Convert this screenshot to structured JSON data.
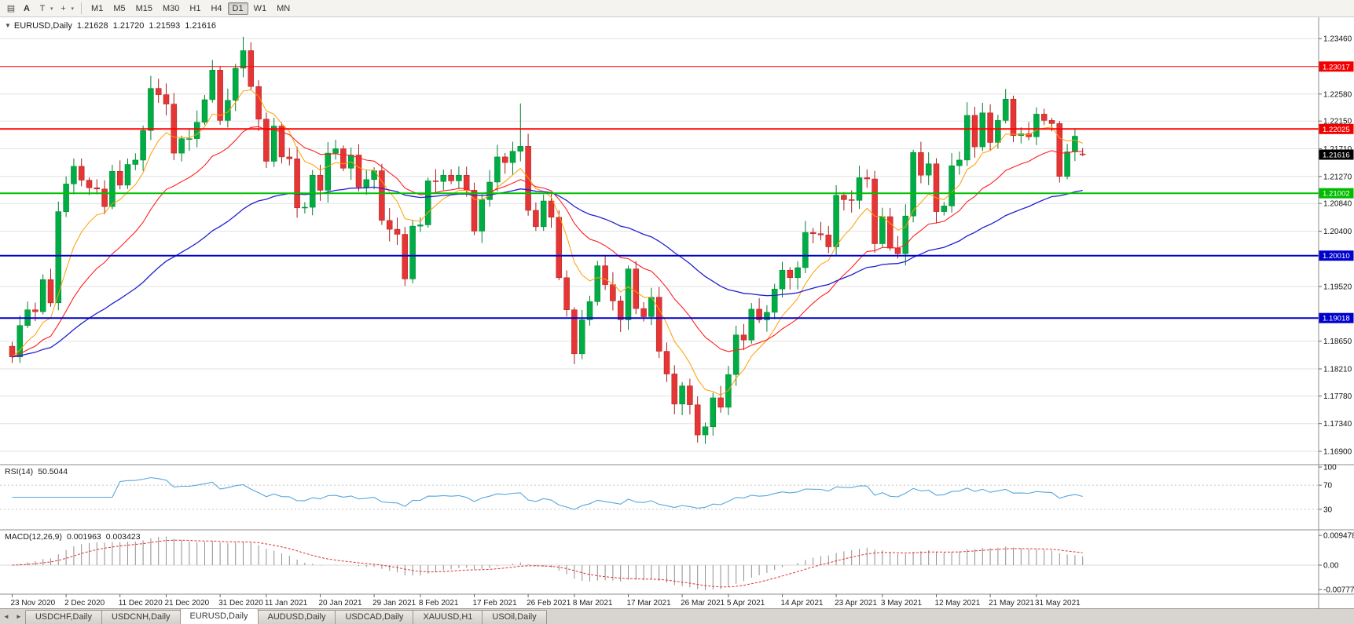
{
  "toolbar": {
    "caret": "▾",
    "icons": [
      {
        "name": "chart-list-icon",
        "glyph": "▤"
      },
      {
        "name": "text-label-icon",
        "glyph": "A"
      },
      {
        "name": "text-tool-icon",
        "glyph": "T"
      },
      {
        "name": "crosshair-cursor-icon",
        "glyph": "+"
      }
    ],
    "timeframes": [
      {
        "label": "M1",
        "active": false
      },
      {
        "label": "M5",
        "active": false
      },
      {
        "label": "M15",
        "active": false
      },
      {
        "label": "M30",
        "active": false
      },
      {
        "label": "H1",
        "active": false
      },
      {
        "label": "H4",
        "active": false
      },
      {
        "label": "D1",
        "active": true
      },
      {
        "label": "W1",
        "active": false
      },
      {
        "label": "MN",
        "active": false
      }
    ]
  },
  "colors": {
    "bull": "#00ad45",
    "bull_edge": "#00802f",
    "bear": "#e53535",
    "bear_edge": "#a81d1d",
    "ma_fast": "#ff9e00",
    "ma_mid": "#ff1f1f",
    "ma_slow": "#1f1fd0",
    "rsi_line": "#57a7dd",
    "macd_hist": "#909090",
    "macd_signal": "#e03030",
    "grid": "#e2e2e2",
    "panel_border": "#8c8c8c",
    "axis_text": "#111111"
  },
  "chart_data": {
    "type": "candlestick",
    "symbol": "EURUSD",
    "timeframe": "Daily",
    "title": {
      "arrow": "▼",
      "symbol": "EURUSD,Daily",
      "o": "1.21628",
      "h": "1.21720",
      "l": "1.21593",
      "c": "1.21616"
    },
    "price_range": {
      "top": 1.238,
      "bottom": 1.1675
    },
    "first_open": 1.1857,
    "closes": [
      1.184,
      1.189,
      1.1915,
      1.1912,
      1.1963,
      1.1926,
      1.2071,
      1.2115,
      1.2143,
      1.2121,
      1.2109,
      1.2107,
      1.2079,
      1.2135,
      1.2113,
      1.2146,
      1.2153,
      1.22,
      1.2267,
      1.2257,
      1.2242,
      1.2164,
      1.2187,
      1.2187,
      1.2213,
      1.2249,
      1.2296,
      1.2216,
      1.2248,
      1.2299,
      1.2327,
      1.227,
      1.2218,
      1.2151,
      1.2207,
      1.2158,
      1.2155,
      1.2077,
      1.2078,
      1.2129,
      1.2105,
      1.2164,
      1.2171,
      1.214,
      1.2161,
      1.211,
      1.2122,
      1.2136,
      1.2057,
      1.2043,
      1.2035,
      1.1964,
      1.2048,
      1.205,
      1.212,
      1.2119,
      1.2129,
      1.212,
      1.2129,
      1.2105,
      1.204,
      1.209,
      1.2118,
      1.2158,
      1.2149,
      1.2167,
      1.2175,
      1.2073,
      1.2047,
      1.2088,
      1.2062,
      1.1966,
      1.1915,
      1.1845,
      1.1899,
      1.1928,
      1.1985,
      1.1955,
      1.1929,
      1.1899,
      1.198,
      1.1917,
      1.1904,
      1.1935,
      1.1849,
      1.1813,
      1.1765,
      1.1794,
      1.1764,
      1.1716,
      1.1729,
      1.1775,
      1.176,
      1.1812,
      1.1875,
      1.1867,
      1.1916,
      1.1899,
      1.1911,
      1.1948,
      1.1978,
      1.1966,
      1.1982,
      1.2038,
      1.2036,
      1.2034,
      1.2015,
      1.2097,
      1.209,
      1.2089,
      1.2125,
      1.2123,
      1.202,
      1.2063,
      1.2013,
      1.2004,
      1.2064,
      1.2165,
      1.2129,
      1.2147,
      1.2071,
      1.208,
      1.2144,
      1.2153,
      1.2224,
      1.2174,
      1.2228,
      1.2181,
      1.2216,
      1.225,
      1.2192,
      1.2195,
      1.219,
      1.2226,
      1.2216,
      1.2211,
      1.2127,
      1.2166,
      1.2191,
      1.21616
    ],
    "overrides": {
      "30": {
        "h": 1.2349
      },
      "51": {
        "l": 1.1953
      },
      "66": {
        "h": 1.2243
      },
      "89": {
        "l": 1.1704
      },
      "124": {
        "h": 1.2245
      },
      "129": {
        "h": 1.2266
      },
      "139": {
        "o": 1.21628,
        "h": 1.2172,
        "l": 1.21593,
        "c": 1.21616
      }
    },
    "ma_periods": [
      8,
      20,
      50
    ],
    "hlines": [
      {
        "v": 1.23017,
        "color": "#ff0000",
        "w": 1
      },
      {
        "v": 1.22025,
        "color": "#ff0000",
        "w": 2
      },
      {
        "v": 1.21002,
        "color": "#00c000",
        "w": 2
      },
      {
        "v": 1.2001,
        "color": "#0000c8",
        "w": 2
      },
      {
        "v": 1.19018,
        "color": "#0000c8",
        "w": 2
      }
    ],
    "price_ticks": [
      {
        "t": "1.23460",
        "v": 1.2346
      },
      {
        "t": "1.22580",
        "v": 1.2258
      },
      {
        "t": "1.22150",
        "v": 1.2215
      },
      {
        "t": "1.21710",
        "v": 1.2171
      },
      {
        "t": "1.21270",
        "v": 1.2127
      },
      {
        "t": "1.20840",
        "v": 1.2084
      },
      {
        "t": "1.20400",
        "v": 1.204
      },
      {
        "t": "1.19520",
        "v": 1.1952
      },
      {
        "t": "1.18650",
        "v": 1.1865
      },
      {
        "t": "1.18210",
        "v": 1.1821
      },
      {
        "t": "1.17780",
        "v": 1.1778
      },
      {
        "t": "1.17340",
        "v": 1.1734
      },
      {
        "t": "1.16900",
        "v": 1.169
      }
    ],
    "line_labels": [
      {
        "t": "1.23017",
        "v": 1.23017,
        "color": "#f20000"
      },
      {
        "t": "1.22025",
        "v": 1.22025,
        "color": "#f20000"
      },
      {
        "t": "1.21002",
        "v": 1.21002,
        "color": "#00bb00"
      },
      {
        "t": "1.20010",
        "v": 1.2001,
        "color": "#0000cc"
      },
      {
        "t": "1.19018",
        "v": 1.19018,
        "color": "#0000cc"
      }
    ],
    "current_price": {
      "t": "1.21616",
      "v": 1.21616
    },
    "rsi": {
      "label": "RSI(14)",
      "value": "50.5044",
      "period": 14,
      "levels": [
        70,
        30
      ],
      "axis": [
        "100",
        "70",
        "30"
      ]
    },
    "macd": {
      "label": "MACD(12,26,9)",
      "values": [
        "0.001963",
        "0.003423"
      ],
      "params": [
        12,
        26,
        9
      ],
      "axis": [
        {
          "t": "0.009478",
          "v": 0.009478
        },
        {
          "t": "0.00",
          "v": 0
        },
        {
          "t": "-0.00777",
          "v": -0.00777
        }
      ]
    },
    "x_labels": [
      [
        "23 Nov 2020",
        0
      ],
      [
        "2 Dec 2020",
        7
      ],
      [
        "11 Dec 2020",
        14
      ],
      [
        "21 Dec 2020",
        20
      ],
      [
        "31 Dec 2020",
        27
      ],
      [
        "11 Jan 2021",
        33
      ],
      [
        "20 Jan 2021",
        40
      ],
      [
        "29 Jan 2021",
        47
      ],
      [
        "8 Feb 2021",
        53
      ],
      [
        "17 Feb 2021",
        60
      ],
      [
        "26 Feb 2021",
        67
      ],
      [
        "8 Mar 2021",
        73
      ],
      [
        "17 Mar 2021",
        80
      ],
      [
        "26 Mar 2021",
        87
      ],
      [
        "5 Apr 2021",
        93
      ],
      [
        "14 Apr 2021",
        100
      ],
      [
        "23 Apr 2021",
        107
      ],
      [
        "3 May 2021",
        113
      ],
      [
        "12 May 2021",
        120
      ],
      [
        "21 May 2021",
        127
      ],
      [
        "31 May 2021",
        133
      ]
    ]
  },
  "tabs": {
    "scroll_left": "◄",
    "scroll_right": "►",
    "items": [
      {
        "label": "USDCHF,Daily",
        "active": false
      },
      {
        "label": "USDCNH,Daily",
        "active": false
      },
      {
        "label": "EURUSD,Daily",
        "active": true
      },
      {
        "label": "AUDUSD,Daily",
        "active": false
      },
      {
        "label": "USDCAD,Daily",
        "active": false
      },
      {
        "label": "XAUUSD,H1",
        "active": false
      },
      {
        "label": "USOil,Daily",
        "active": false
      }
    ]
  }
}
